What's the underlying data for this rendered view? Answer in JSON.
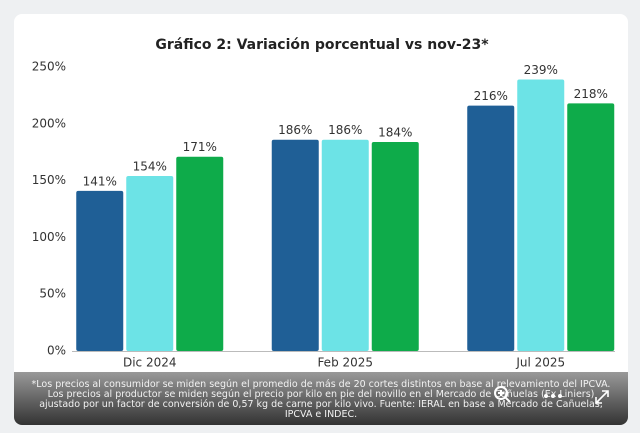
{
  "chart_data": {
    "type": "bar",
    "title": "Gráfico 2: Variación porcentual vs nov-23*",
    "categories": [
      "Dic 2024",
      "Feb 2025",
      "Jul 2025"
    ],
    "series": [
      {
        "color": "#1f5f96",
        "values": [
          141,
          186,
          216
        ],
        "value_labels": [
          "141%",
          "186%",
          "216%"
        ]
      },
      {
        "color": "#6ce3e6",
        "values": [
          154,
          186,
          239
        ],
        "value_labels": [
          "154%",
          "186%",
          "239%"
        ]
      },
      {
        "color": "#0eab4a",
        "values": [
          171,
          184,
          218
        ],
        "value_labels": [
          "171%",
          "184%",
          "218%"
        ]
      }
    ],
    "ylim": [
      0,
      250
    ],
    "yticks": [
      {
        "value": 0,
        "label": "0%"
      },
      {
        "value": 50,
        "label": "50%"
      },
      {
        "value": 100,
        "label": "100%"
      },
      {
        "value": 150,
        "label": "150%"
      },
      {
        "value": 200,
        "label": "200%"
      },
      {
        "value": 250,
        "label": "250%"
      }
    ],
    "grid": false,
    "note": "*Los precios al consumidor se miden según el promedio de más de 20 cortes distintos en base al relevamiento del IPCVA. Los precios al productor se miden según el precio por kilo en pie del novillo en el Mercado de Cañuelas (Ex Liniers) ajustado por un factor de conversión de 0,57 kg de carne por kilo vivo. Fuente: IERAL en base a Mercado de Cañuelas, IPCVA e INDEC."
  }
}
